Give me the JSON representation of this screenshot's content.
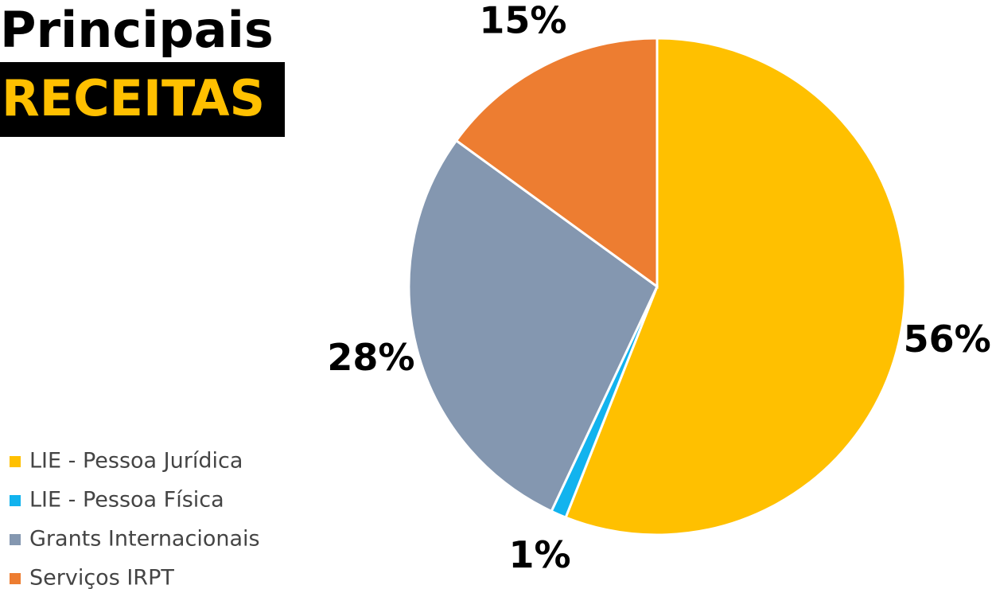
{
  "chart_data": {
    "type": "pie",
    "title": "Principais",
    "subtitle": "RECEITAS",
    "categories": [
      "LIE - Pessoa Jurídica",
      "LIE - Pessoa Física",
      "Grants Internacionais",
      "Serviços IRPT"
    ],
    "values": [
      56,
      1,
      28,
      15
    ],
    "value_labels": [
      "56%",
      "1%",
      "28%",
      "15%"
    ],
    "colors": [
      "#ffc000",
      "#12b3ee",
      "#8497b0",
      "#ed7d31"
    ]
  }
}
